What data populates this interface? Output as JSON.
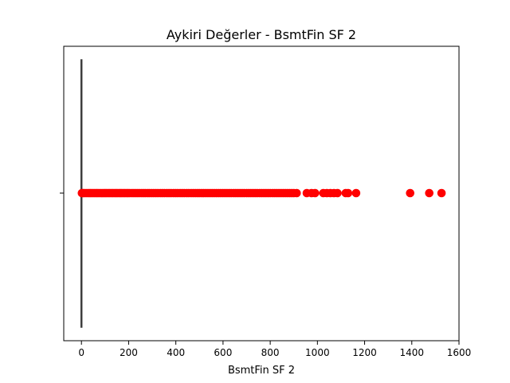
{
  "chart_data": {
    "type": "boxplot",
    "title": "Aykiri Değerler - BsmtFin SF 2",
    "xlabel": "BsmtFin SF 2",
    "ylabel": "",
    "xlim": [
      -75,
      1600
    ],
    "x_ticks": [
      0,
      200,
      400,
      600,
      800,
      1000,
      1200,
      1400,
      1600
    ],
    "x_tick_labels": [
      "0",
      "200",
      "400",
      "600",
      "800",
      "1000",
      "1200",
      "1400",
      "1600"
    ],
    "grid": false,
    "box": {
      "min": 0,
      "q1": 0,
      "median": 0,
      "q3": 0,
      "max": 0
    },
    "outliers": [
      2,
      6,
      12,
      20,
      28,
      35,
      41,
      48,
      55,
      62,
      68,
      75,
      82,
      90,
      96,
      102,
      108,
      115,
      121,
      128,
      134,
      141,
      147,
      153,
      160,
      166,
      172,
      179,
      185,
      192,
      198,
      205,
      214,
      222,
      230,
      238,
      246,
      255,
      263,
      271,
      280,
      288,
      297,
      306,
      315,
      324,
      334,
      343,
      352,
      362,
      371,
      380,
      390,
      399,
      408,
      418,
      427,
      436,
      446,
      455,
      465,
      474,
      483,
      492,
      500,
      509,
      518,
      527,
      536,
      545,
      554,
      563,
      572,
      581,
      590,
      599,
      608,
      617,
      626,
      635,
      645,
      654,
      663,
      672,
      681,
      690,
      700,
      709,
      718,
      727,
      736,
      745,
      755,
      764,
      773,
      782,
      791,
      800,
      810,
      819,
      828,
      837,
      846,
      855,
      864,
      873,
      882,
      891,
      900,
      912,
      955,
      975,
      990,
      1025,
      1040,
      1055,
      1070,
      1085,
      1120,
      1130,
      1164,
      1393,
      1474,
      1526
    ],
    "outlier_color": "#ff0000",
    "box_color": "#3f3f3f"
  }
}
